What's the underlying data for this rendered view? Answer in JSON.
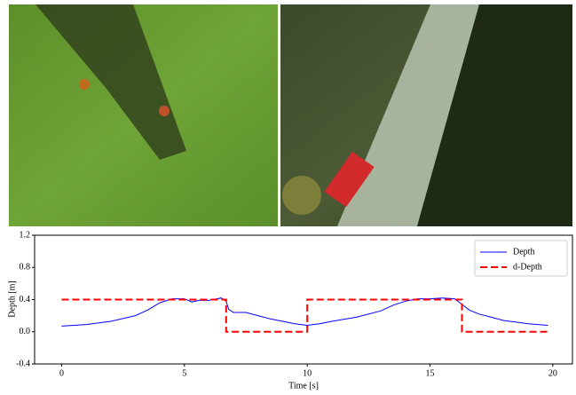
{
  "chart_data": {
    "type": "line",
    "xlabel": "Time [s]",
    "ylabel": "Depth [m]",
    "xlim": [
      -1.1,
      20.8
    ],
    "ylim": [
      -0.4,
      1.2
    ],
    "xticks": [
      0,
      5,
      10,
      15,
      20
    ],
    "yticks": [
      -0.4,
      {
        "value": 0,
        "label": "0.0"
      },
      0.4,
      0.8,
      1.2
    ],
    "legend": "upper right",
    "series": [
      {
        "name": "Depth",
        "color": "#0000ff",
        "style": "solid",
        "x": [
          0,
          1,
          2,
          3,
          3.5,
          4,
          4.5,
          5,
          5.3,
          5.6,
          6,
          6.5,
          6.7,
          6.8,
          7,
          7.5,
          8,
          8.5,
          9,
          9.5,
          10,
          10.5,
          11,
          12,
          13,
          13.5,
          14,
          14.5,
          15,
          15.5,
          16,
          16.3,
          16.6,
          17,
          17.5,
          18,
          18.5,
          19,
          19.8
        ],
        "values": [
          0.07,
          0.09,
          0.13,
          0.2,
          0.27,
          0.36,
          0.41,
          0.41,
          0.37,
          0.39,
          0.39,
          0.42,
          0.38,
          0.28,
          0.24,
          0.24,
          0.2,
          0.16,
          0.13,
          0.1,
          0.08,
          0.1,
          0.13,
          0.18,
          0.26,
          0.33,
          0.38,
          0.41,
          0.41,
          0.42,
          0.41,
          0.34,
          0.27,
          0.22,
          0.18,
          0.14,
          0.12,
          0.1,
          0.08
        ]
      },
      {
        "name": "d-Depth",
        "color": "#ff0000",
        "style": "dashed",
        "x": [
          0,
          6.7,
          6.7,
          10,
          10,
          16.3,
          16.3,
          19.8
        ],
        "values": [
          0.4,
          0.4,
          0,
          0,
          0.4,
          0.4,
          0,
          0
        ]
      }
    ]
  }
}
